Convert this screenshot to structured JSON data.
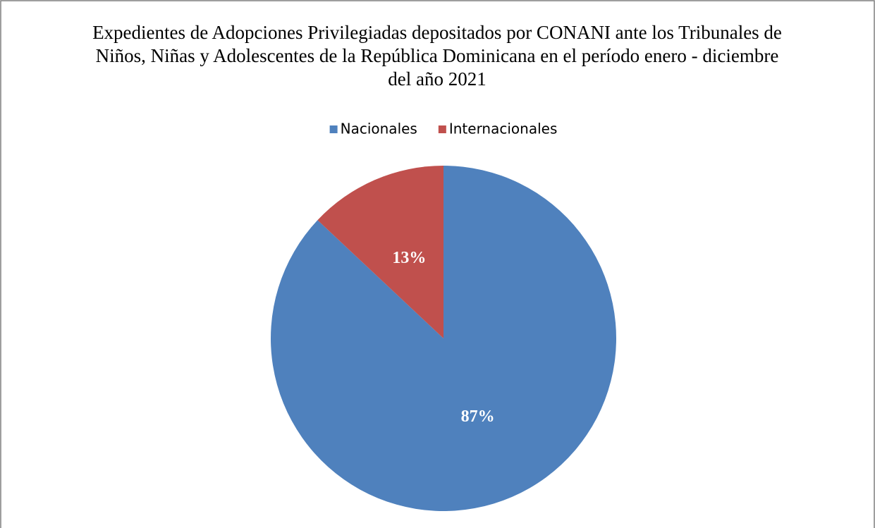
{
  "chart_data": {
    "type": "pie",
    "title": "Expedientes de Adopciones Privilegiadas depositados por CONANI ante los Tribunales de Niños, Niñas y Adolescentes de la República Dominicana en el período enero - diciembre del año 2021",
    "categories": [
      "Nacionales",
      "Internacionales"
    ],
    "values": [
      87,
      13
    ],
    "value_labels": [
      "87%",
      "13%"
    ],
    "colors": [
      "#4f81bd",
      "#c0504d"
    ],
    "legend": "top"
  }
}
